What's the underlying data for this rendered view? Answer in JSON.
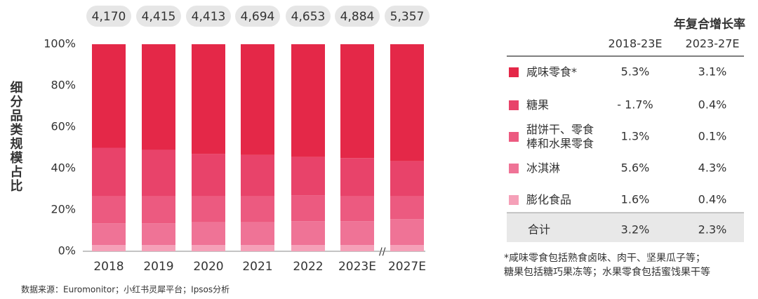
{
  "chart_data": {
    "type": "stacked_bar_100",
    "ylabel": "细分品类规模占比",
    "categories": [
      "2018",
      "2019",
      "2020",
      "2021",
      "2022",
      "2023E",
      "2027E"
    ],
    "totals": {
      "values": [
        4170,
        4415,
        4413,
        4694,
        4653,
        4884,
        5357
      ],
      "value_labels": [
        "4,170",
        "4,415",
        "4,413",
        "4,694",
        "4,653",
        "4,884",
        "5,357"
      ]
    },
    "series": [
      {
        "name": "咸味零食*",
        "color": "#e42848",
        "values": [
          50,
          51,
          53,
          53.5,
          54.5,
          55,
          56.5
        ]
      },
      {
        "name": "糖果",
        "color": "#e8436a",
        "values": [
          23.5,
          22.5,
          20.5,
          20,
          18.5,
          18.5,
          17
        ]
      },
      {
        "name": "甜饼干、零食棒和水果零食",
        "color": "#ec5a80",
        "values": [
          13,
          13,
          12.5,
          12.5,
          12.5,
          12,
          11
        ]
      },
      {
        "name": "冰淇淋",
        "color": "#ef7396",
        "values": [
          10.5,
          10.5,
          11,
          11,
          11.5,
          11.5,
          12.5
        ]
      },
      {
        "name": "膨化食品",
        "color": "#f5a0b8",
        "values": [
          3,
          3,
          3,
          3,
          3,
          3,
          3
        ]
      }
    ],
    "ylim": [
      0,
      100
    ],
    "yticks": [
      {
        "value": 0,
        "label": "0%"
      },
      {
        "value": 20,
        "label": "20%"
      },
      {
        "value": 40,
        "label": "40%"
      },
      {
        "value": 60,
        "label": "60%"
      },
      {
        "value": 80,
        "label": "80%"
      },
      {
        "value": 100,
        "label": "100%"
      }
    ],
    "source": "数据来源：Euromonitor；小红书灵犀平台；Ipsos分析"
  },
  "table": {
    "title": "年复合增长率",
    "columns": [
      "2018-23E",
      "2023-27E"
    ],
    "rows": [
      [
        "5.3%",
        "3.1%"
      ],
      [
        "- 1.7%",
        "0.4%"
      ],
      [
        "1.3%",
        "0.1%"
      ],
      [
        "5.6%",
        "4.3%"
      ],
      [
        "1.6%",
        "0.4%"
      ]
    ],
    "total": {
      "label": "合计",
      "values": [
        "3.2%",
        "2.3%"
      ]
    },
    "footnote": [
      "*咸味零食包括熟食卤味、肉干、坚果瓜子等；",
      "糖果包括糖巧果冻等；水果零食包括蜜饯果干等"
    ]
  }
}
